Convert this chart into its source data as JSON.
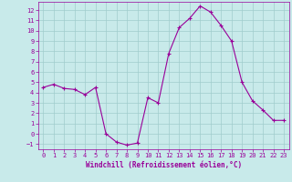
{
  "x": [
    0,
    1,
    2,
    3,
    4,
    5,
    6,
    7,
    8,
    9,
    10,
    11,
    12,
    13,
    14,
    15,
    16,
    17,
    18,
    19,
    20,
    21,
    22,
    23
  ],
  "y": [
    4.5,
    4.8,
    4.4,
    4.3,
    3.8,
    4.5,
    0.0,
    -0.8,
    -1.1,
    -0.9,
    3.5,
    3.0,
    7.8,
    10.3,
    11.2,
    12.4,
    11.8,
    10.5,
    9.0,
    5.0,
    3.2,
    2.3,
    1.3,
    1.3
  ],
  "line_color": "#990099",
  "marker": "+",
  "marker_size": 3,
  "bg_color": "#c8eaea",
  "grid_color": "#a0cccc",
  "xlabel": "Windchill (Refroidissement éolien,°C)",
  "xlabel_color": "#990099",
  "tick_color": "#990099",
  "xlim": [
    -0.5,
    23.5
  ],
  "ylim": [
    -1.5,
    12.8
  ],
  "yticks": [
    -1,
    0,
    1,
    2,
    3,
    4,
    5,
    6,
    7,
    8,
    9,
    10,
    11,
    12
  ],
  "xticks": [
    0,
    1,
    2,
    3,
    4,
    5,
    6,
    7,
    8,
    9,
    10,
    11,
    12,
    13,
    14,
    15,
    16,
    17,
    18,
    19,
    20,
    21,
    22,
    23
  ]
}
